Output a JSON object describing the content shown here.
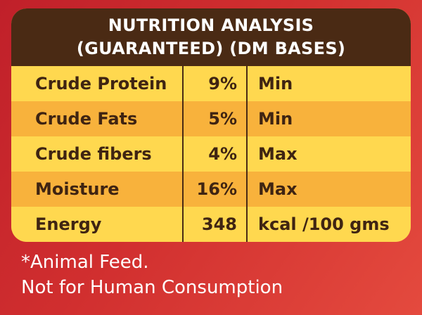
{
  "header": {
    "line1": "NUTRITION ANALYSIS",
    "line2": "(GUARANTEED) (DM BASES)"
  },
  "rows": [
    {
      "name": "Crude Protein",
      "value": "9%",
      "unit": "Min"
    },
    {
      "name": "Crude Fats",
      "value": "5%",
      "unit": "Min"
    },
    {
      "name": "Crude fibers",
      "value": "4%",
      "unit": "Max"
    },
    {
      "name": "Moisture",
      "value": "16%",
      "unit": "Max"
    },
    {
      "name": "Energy",
      "value": "348",
      "unit": "kcal /100 gms"
    }
  ],
  "footer": {
    "line1": "*Animal Feed.",
    "line2": "Not for Human Consumption"
  },
  "colors": {
    "background": "#d12f2f",
    "header": "#4a2a14",
    "row_light": "#ffd84f",
    "row_dark": "#f8b23c",
    "text": "#3f2412"
  }
}
